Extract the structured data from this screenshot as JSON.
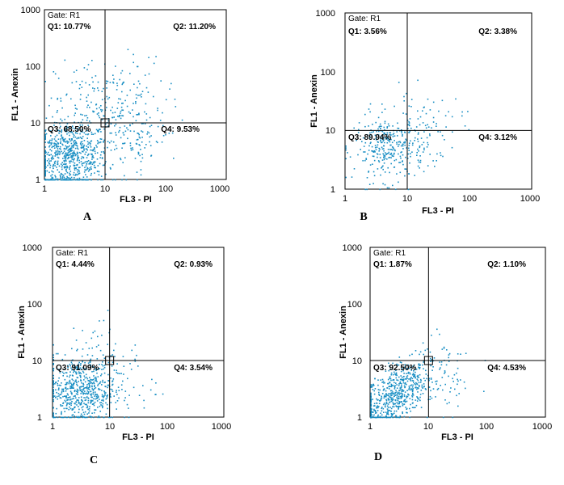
{
  "chart_data": [
    {
      "type": "scatter",
      "panel_label": "A",
      "xlabel": "FL3 - PI",
      "ylabel": "FL1 - Anexin",
      "xscale": "log",
      "yscale": "log",
      "xlim": [
        1,
        1000
      ],
      "ylim": [
        1,
        1000
      ],
      "x_ticks": [
        "1",
        "10",
        "100",
        "1000"
      ],
      "y_ticks": [
        "1",
        "10",
        "100",
        "1000"
      ],
      "gate": "Gate: R1",
      "quadrant_gate": [
        10,
        10
      ],
      "quadrants": [
        {
          "name": "Q1",
          "label": "Q1: 10.77%",
          "percent": 10.77
        },
        {
          "name": "Q2",
          "label": "Q2: 11.20%",
          "percent": 11.2
        },
        {
          "name": "Q3",
          "label": "Q3: 68.50%",
          "percent": 68.5
        },
        {
          "name": "Q4",
          "label": "Q4: 9.53%",
          "percent": 9.53
        }
      ],
      "population": [
        {
          "x": 2.5,
          "y": 2.5,
          "spread": 0.32,
          "count": 700
        },
        {
          "x": 12,
          "y": 18,
          "spread": 0.45,
          "count": 260
        },
        {
          "x": 30,
          "y": 5,
          "spread": 0.3,
          "count": 60
        }
      ],
      "point_color": "#1a8fc4"
    },
    {
      "type": "scatter",
      "panel_label": "B",
      "xlabel": "FL3 - PI",
      "ylabel": "FL1 - Anexin",
      "xscale": "log",
      "yscale": "log",
      "xlim": [
        1,
        1000
      ],
      "ylim": [
        1,
        1000
      ],
      "x_ticks": [
        "1",
        "10",
        "100",
        "1000"
      ],
      "y_ticks": [
        "1",
        "10",
        "100",
        "1000"
      ],
      "gate": "Gate: R1",
      "quadrant_gate": [
        10,
        10
      ],
      "quadrants": [
        {
          "name": "Q1",
          "label": "Q1: 3.56%",
          "percent": 3.56
        },
        {
          "name": "Q2",
          "label": "Q2: 3.38%",
          "percent": 3.38
        },
        {
          "name": "Q3",
          "label": "Q3: 89.94%",
          "percent": 89.94
        },
        {
          "name": "Q4",
          "label": "Q4: 3.12%",
          "percent": 3.12
        }
      ],
      "population": [
        {
          "x": 5,
          "y": 5,
          "spread": 0.28,
          "count": 320
        },
        {
          "x": 20,
          "y": 12,
          "spread": 0.3,
          "count": 80
        }
      ],
      "point_color": "#1a8fc4"
    },
    {
      "type": "scatter",
      "panel_label": "C",
      "xlabel": "FL3 - PI",
      "ylabel": "FL1 - Anexin",
      "xscale": "log",
      "yscale": "log",
      "xlim": [
        1,
        1000
      ],
      "ylim": [
        1,
        1000
      ],
      "x_ticks": [
        "1",
        "10",
        "100",
        "1000"
      ],
      "y_ticks": [
        "1",
        "10",
        "100",
        "1000"
      ],
      "gate": "Gate: R1",
      "quadrant_gate": [
        10,
        10
      ],
      "quadrants": [
        {
          "name": "Q1",
          "label": "Q1: 4.44%",
          "percent": 4.44
        },
        {
          "name": "Q2",
          "label": "Q2: 0.93%",
          "percent": 0.93
        },
        {
          "name": "Q3",
          "label": "Q3: 91.09%",
          "percent": 91.09
        },
        {
          "name": "Q4",
          "label": "Q4: 3.54%",
          "percent": 3.54
        }
      ],
      "population": [
        {
          "x": 3,
          "y": 3,
          "spread": 0.3,
          "count": 600
        },
        {
          "x": 6,
          "y": 15,
          "spread": 0.35,
          "count": 50
        },
        {
          "x": 15,
          "y": 4,
          "spread": 0.3,
          "count": 40
        }
      ],
      "point_color": "#1a8fc4"
    },
    {
      "type": "scatter",
      "panel_label": "D",
      "xlabel": "FL3 - PI",
      "ylabel": "FL1 - Anexin",
      "xscale": "log",
      "yscale": "log",
      "xlim": [
        1,
        1000
      ],
      "ylim": [
        1,
        1000
      ],
      "x_ticks": [
        "1",
        "10",
        "100",
        "1000"
      ],
      "y_ticks": [
        "1",
        "10",
        "100",
        "1000"
      ],
      "gate": "Gate: R1",
      "quadrant_gate": [
        10,
        10
      ],
      "quadrants": [
        {
          "name": "Q1",
          "label": "Q1: 1.87%",
          "percent": 1.87
        },
        {
          "name": "Q2",
          "label": "Q2: 1.10%",
          "percent": 1.1
        },
        {
          "name": "Q3",
          "label": "Q3: 92.50%",
          "percent": 92.5
        },
        {
          "name": "Q4",
          "label": "Q4: 4.53%",
          "percent": 4.53
        }
      ],
      "population": [
        {
          "x": 2.5,
          "y": 2.5,
          "spread": 0.2,
          "count": 650,
          "diagonal": true
        },
        {
          "x": 18,
          "y": 4,
          "spread": 0.3,
          "count": 60
        }
      ],
      "point_color": "#1a8fc4"
    }
  ]
}
